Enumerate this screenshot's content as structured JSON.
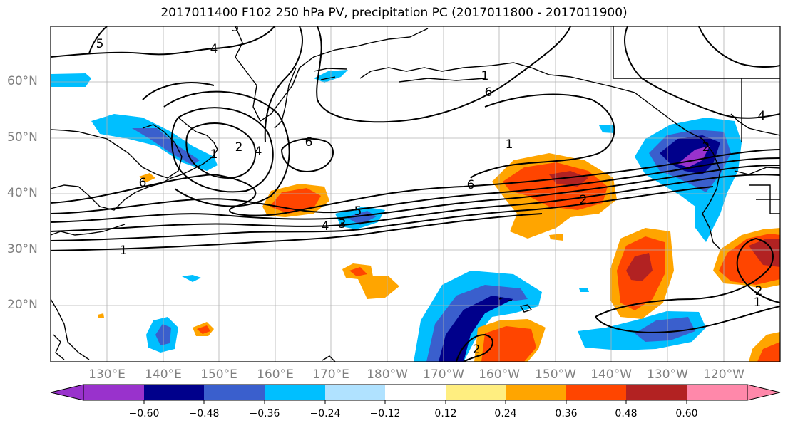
{
  "title": "2017011400 F102 250 hPa PV, precipitation PC (2017011800 - 2017011900)",
  "map": {
    "lat_labels": [
      "60°N",
      "50°N",
      "40°N",
      "30°N",
      "20°N"
    ],
    "lon_labels": [
      "130°E",
      "140°E",
      "150°E",
      "160°E",
      "170°E",
      "180°W",
      "170°W",
      "160°W",
      "150°W",
      "140°W",
      "130°W",
      "120°W"
    ],
    "contour_labels": [
      "5",
      "4",
      "5",
      "2",
      "1",
      "6",
      "4",
      "6",
      "1",
      "6",
      "2",
      "4",
      "4",
      "3",
      "5",
      "6",
      "1",
      "2",
      "1",
      "2",
      "2",
      "1"
    ],
    "colors": {
      "coast": "#000000",
      "grid": "#b0b0b0",
      "contour": "#000000"
    }
  },
  "colorbar": {
    "ticks": [
      "−0.60",
      "−0.48",
      "−0.36",
      "−0.24",
      "−0.12",
      "0.12",
      "0.24",
      "0.36",
      "0.48",
      "0.60"
    ],
    "colors": [
      "#9932cc",
      "#00008b",
      "#3a5fcd",
      "#00bfff",
      "#b0e2ff",
      "#ffffff",
      "#ffee80",
      "#ffa500",
      "#ff4500",
      "#b22222",
      "#ff88aa"
    ]
  }
}
